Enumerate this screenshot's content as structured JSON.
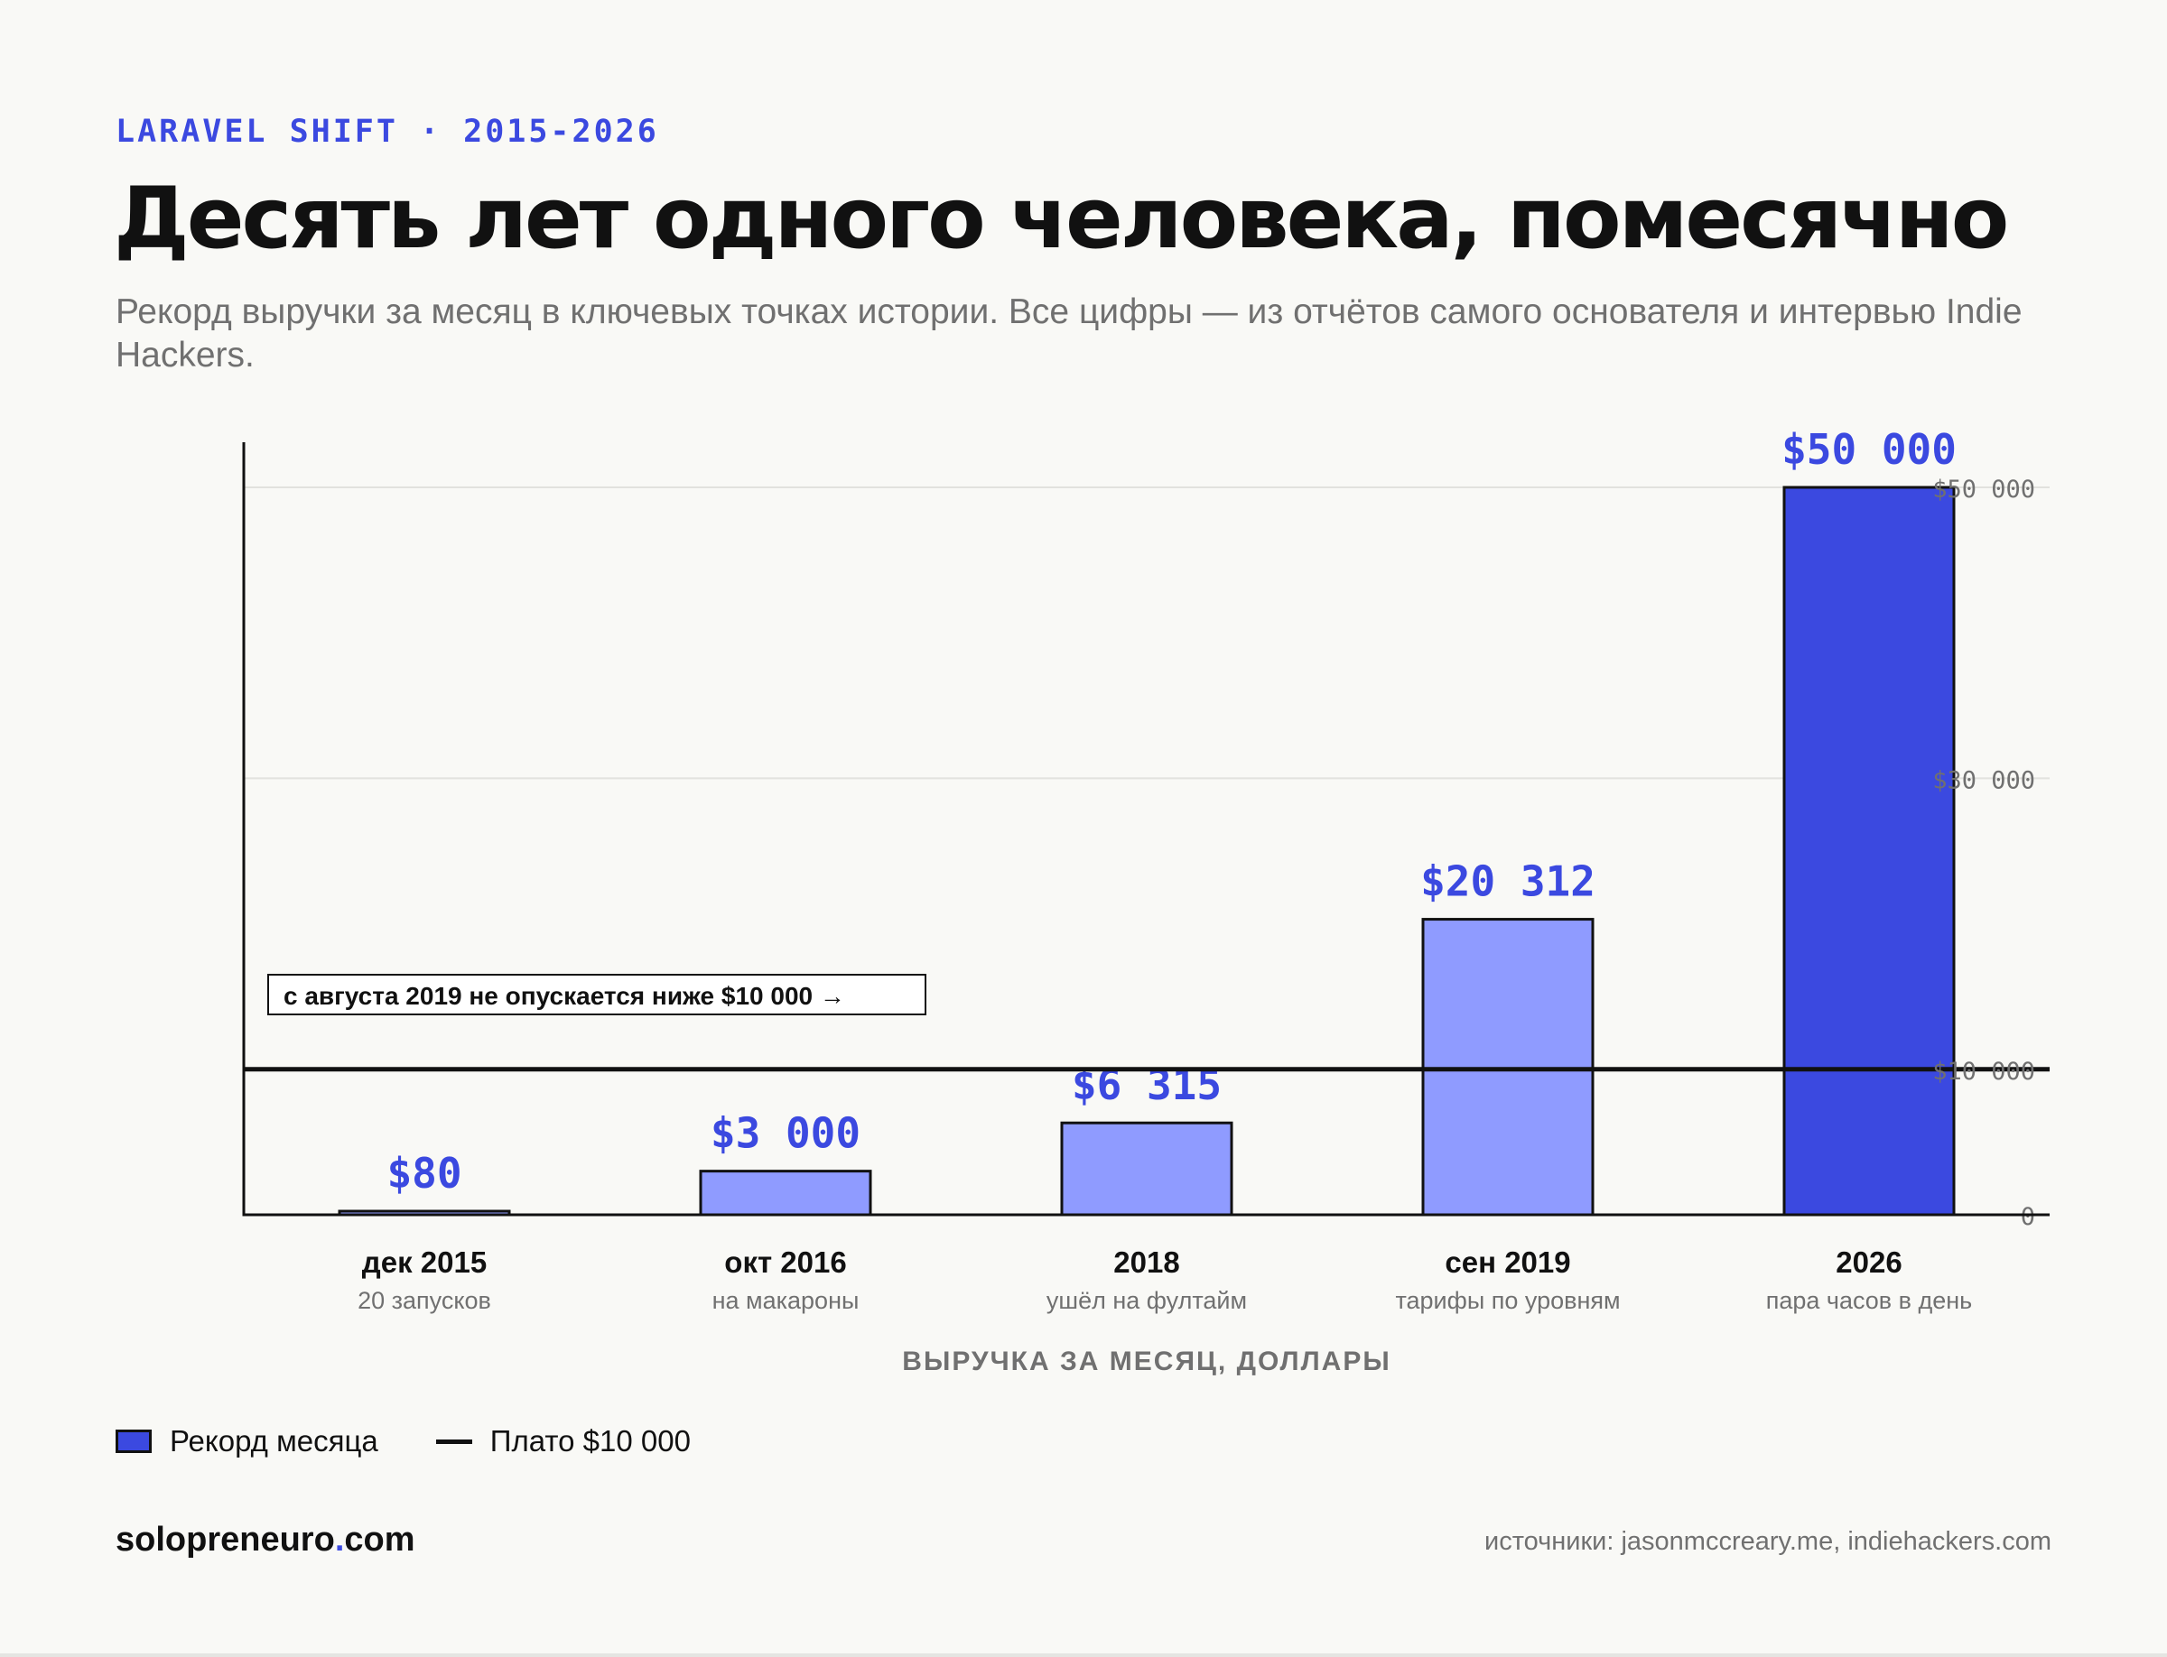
{
  "header": {
    "eyebrow": "LARAVEL SHIFT · 2015-2026",
    "title": "Десять лет одного человека, помесячно",
    "subtitle": "Рекорд выручки за месяц в ключевых точках истории. Все цифры — из отчётов самого основателя и интервью Indie Hackers."
  },
  "chart_data": {
    "type": "bar",
    "categories": [
      "дек 2015",
      "окт 2016",
      "2018",
      "сен 2019",
      "2026"
    ],
    "category_notes": [
      "20 запусков",
      "на макароны",
      "ушёл на фултайм",
      "тарифы по уровням",
      "пара часов в день"
    ],
    "values": [
      80,
      3000,
      6315,
      20312,
      50000
    ],
    "value_labels": [
      "$80",
      "$3 000",
      "$6 315",
      "$20 312",
      "$50 000"
    ],
    "highlight_index": 4,
    "xlabel": "ВЫРУЧКА ЗА МЕСЯЦ, ДОЛЛАРЫ",
    "ylabel": "",
    "ylim": [
      0,
      52000
    ],
    "yticks": [
      0,
      10000,
      30000,
      50000
    ],
    "ytick_labels": [
      "0",
      "$10 000",
      "$30 000",
      "$50 000"
    ],
    "y_axis_side": "right",
    "grid": true,
    "reference_line": {
      "value": 10000,
      "label": "с августа 2019 не опускается ниже $10 000 →"
    },
    "legend": {
      "position": "bottom-left",
      "entries": [
        {
          "label": "Рекорд месяца",
          "kind": "bar"
        },
        {
          "label": "Плато $10 000",
          "kind": "line"
        }
      ]
    },
    "colors": {
      "highlight": "#3b49e0",
      "bar": "#8f9bff",
      "ink": "#111111",
      "grid": "#e2e2de",
      "muted": "#707070"
    }
  },
  "footer": {
    "site_main": "solopreneuro",
    "site_dot": ".",
    "site_tld": "com",
    "sources": "источники: jasonmccreary.me, indiehackers.com"
  }
}
